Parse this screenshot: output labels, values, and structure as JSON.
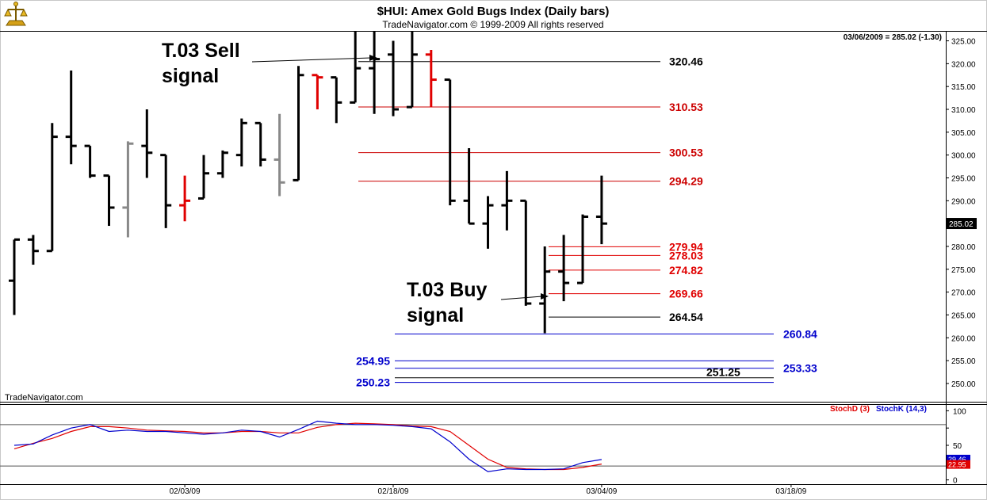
{
  "header": {
    "title": "$HUI:  Amex Gold Bugs Index  (Daily bars)",
    "copyright": "TradeNavigator.com © 1999-2009 All rights reserved",
    "readout": "03/06/2009 = 285.02 (-1.30)",
    "watermark": "TradeNavigator.com"
  },
  "colors": {
    "up_black": "#000000",
    "red": "#e00000",
    "gray": "#888888",
    "blue": "#0000cc",
    "dark_red": "#cc0000",
    "stoch_d": "#e00000",
    "stoch_k": "#0000cc",
    "last_price_box": "#000000"
  },
  "annotations": [
    {
      "id": "sell",
      "lines": [
        "T.03 Sell",
        "signal"
      ]
    },
    {
      "id": "buy",
      "lines": [
        "T.03 Buy",
        "signal"
      ]
    }
  ],
  "chart_data": {
    "type": "bar",
    "title": "$HUI:  Amex Gold Bugs Index  (Daily bars)",
    "price_axis": {
      "ylim": [
        246,
        327
      ],
      "ticks": [
        250,
        255,
        260,
        265,
        270,
        275,
        280,
        285,
        290,
        295,
        300,
        305,
        310,
        315,
        320,
        325
      ],
      "tick_labels": [
        "250.00",
        "255.00",
        "260.00",
        "265.00",
        "270.00",
        "275.00",
        "280.00",
        "285.00",
        "290.00",
        "295.00",
        "300.00",
        "305.00",
        "310.00",
        "315.00",
        "320.00",
        "325.00"
      ],
      "last_price": 285.02,
      "last_price_label": "285.02"
    },
    "date_ticks": [
      {
        "index": 9,
        "label": "02/03/09"
      },
      {
        "index": 20,
        "label": "02/18/09"
      },
      {
        "index": 31,
        "label": "03/04/09"
      },
      {
        "index": 41,
        "label": "03/18/09"
      }
    ],
    "bars": [
      {
        "o": 272.5,
        "h": 281.5,
        "l": 265.0,
        "c": 281.5,
        "color": "black"
      },
      {
        "o": 281.5,
        "h": 282.5,
        "l": 276.0,
        "c": 279.0,
        "color": "black"
      },
      {
        "o": 279.0,
        "h": 307.0,
        "l": 279.0,
        "c": 304.0,
        "color": "black"
      },
      {
        "o": 304.0,
        "h": 318.5,
        "l": 298.0,
        "c": 302.0,
        "color": "black"
      },
      {
        "o": 302.0,
        "h": 302.0,
        "l": 295.0,
        "c": 295.5,
        "color": "black"
      },
      {
        "o": 295.5,
        "h": 295.5,
        "l": 284.5,
        "c": 288.5,
        "color": "black"
      },
      {
        "o": 288.5,
        "h": 303.0,
        "l": 282.0,
        "c": 302.5,
        "color": "gray"
      },
      {
        "o": 302.0,
        "h": 310.0,
        "l": 295.0,
        "c": 300.5,
        "color": "black"
      },
      {
        "o": 300.0,
        "h": 300.0,
        "l": 284.0,
        "c": 289.0,
        "color": "black"
      },
      {
        "o": 289.0,
        "h": 295.5,
        "l": 285.5,
        "c": 290.0,
        "color": "red"
      },
      {
        "o": 290.5,
        "h": 300.0,
        "l": 290.5,
        "c": 296.0,
        "color": "black"
      },
      {
        "o": 296.0,
        "h": 301.0,
        "l": 295.0,
        "c": 300.5,
        "color": "black"
      },
      {
        "o": 300.0,
        "h": 308.0,
        "l": 297.5,
        "c": 307.0,
        "color": "black"
      },
      {
        "o": 307.0,
        "h": 307.0,
        "l": 297.5,
        "c": 299.0,
        "color": "black"
      },
      {
        "o": 299.0,
        "h": 309.0,
        "l": 291.0,
        "c": 294.0,
        "color": "gray"
      },
      {
        "o": 294.5,
        "h": 319.5,
        "l": 294.5,
        "c": 317.5,
        "color": "black"
      },
      {
        "o": 317.5,
        "h": 317.5,
        "l": 310.0,
        "c": 317.0,
        "color": "red"
      },
      {
        "o": 317.0,
        "h": 317.0,
        "l": 307.0,
        "c": 311.5,
        "color": "black"
      },
      {
        "o": 311.5,
        "h": 327.0,
        "l": 311.5,
        "c": 319.0,
        "color": "black"
      },
      {
        "o": 319.0,
        "h": 327.0,
        "l": 309.0,
        "c": 321.0,
        "color": "black"
      },
      {
        "o": 322.0,
        "h": 325.0,
        "l": 308.5,
        "c": 310.0,
        "color": "black"
      },
      {
        "o": 310.5,
        "h": 327.0,
        "l": 310.5,
        "c": 322.0,
        "color": "black"
      },
      {
        "o": 322.0,
        "h": 323.0,
        "l": 310.5,
        "c": 316.5,
        "color": "red"
      },
      {
        "o": 316.5,
        "h": 316.5,
        "l": 289.0,
        "c": 290.0,
        "color": "black"
      },
      {
        "o": 290.0,
        "h": 301.5,
        "l": 285.0,
        "c": 285.0,
        "color": "black"
      },
      {
        "o": 285.0,
        "h": 291.0,
        "l": 279.5,
        "c": 289.0,
        "color": "black"
      },
      {
        "o": 289.0,
        "h": 296.5,
        "l": 283.5,
        "c": 290.0,
        "color": "black"
      },
      {
        "o": 290.0,
        "h": 290.0,
        "l": 267.0,
        "c": 267.5,
        "color": "black"
      },
      {
        "o": 267.5,
        "h": 280.0,
        "l": 261.0,
        "c": 274.5,
        "color": "black"
      },
      {
        "o": 274.5,
        "h": 282.5,
        "l": 268.0,
        "c": 272.0,
        "color": "black"
      },
      {
        "o": 272.0,
        "h": 287.0,
        "l": 272.0,
        "c": 286.5,
        "color": "black"
      },
      {
        "o": 286.5,
        "h": 295.5,
        "l": 280.5,
        "c": 285.0,
        "color": "black"
      }
    ],
    "levels": [
      {
        "value": 320.46,
        "label": "320.46",
        "color": "black",
        "kind": "resistance"
      },
      {
        "value": 310.53,
        "label": "310.53",
        "color": "dark_red",
        "kind": "resistance"
      },
      {
        "value": 300.53,
        "label": "300.53",
        "color": "dark_red",
        "kind": "resistance"
      },
      {
        "value": 294.29,
        "label": "294.29",
        "color": "dark_red",
        "kind": "resistance"
      },
      {
        "value": 279.94,
        "label": "279.94",
        "color": "red",
        "kind": "resistance"
      },
      {
        "value": 278.03,
        "label": "278.03",
        "color": "red",
        "kind": "resistance"
      },
      {
        "value": 274.82,
        "label": "274.82",
        "color": "red",
        "kind": "resistance"
      },
      {
        "value": 269.66,
        "label": "269.66",
        "color": "red",
        "kind": "resistance"
      },
      {
        "value": 264.54,
        "label": "264.54",
        "color": "black",
        "kind": "support"
      },
      {
        "value": 260.84,
        "label": "260.84",
        "color": "blue",
        "kind": "support"
      },
      {
        "value": 254.95,
        "label": "254.95",
        "color": "blue",
        "kind": "support"
      },
      {
        "value": 253.33,
        "label": "253.33",
        "color": "blue",
        "kind": "support"
      },
      {
        "value": 251.25,
        "label": "251.25",
        "color": "black",
        "kind": "support"
      },
      {
        "value": 250.23,
        "label": "250.23",
        "color": "blue",
        "kind": "support"
      }
    ],
    "stochastic": {
      "ylim": [
        -5,
        105
      ],
      "ticks": [
        0,
        25,
        50,
        75,
        100
      ],
      "tick_labels": [
        "0",
        "",
        "50",
        "",
        "100"
      ],
      "ref_lines": [
        80,
        20
      ],
      "legend": [
        {
          "name": "StochD (3)",
          "color": "stoch_d"
        },
        {
          "name": "StochK (14,3)",
          "color": "stoch_k"
        }
      ],
      "last_values": {
        "k": "29.46",
        "d": "22.95"
      },
      "k": [
        50,
        52,
        65,
        75,
        80,
        70,
        72,
        70,
        70,
        68,
        66,
        68,
        72,
        70,
        62,
        73,
        85,
        82,
        80,
        80,
        79,
        77,
        74,
        55,
        30,
        12,
        16,
        15,
        15,
        16,
        25,
        29.46
      ],
      "d": [
        45,
        53,
        60,
        70,
        77,
        77,
        75,
        72,
        71,
        70,
        68,
        68,
        70,
        70,
        68,
        68,
        76,
        80,
        82,
        81,
        80,
        78,
        77,
        70,
        50,
        30,
        18,
        16,
        15,
        15,
        18,
        22.95
      ]
    }
  }
}
